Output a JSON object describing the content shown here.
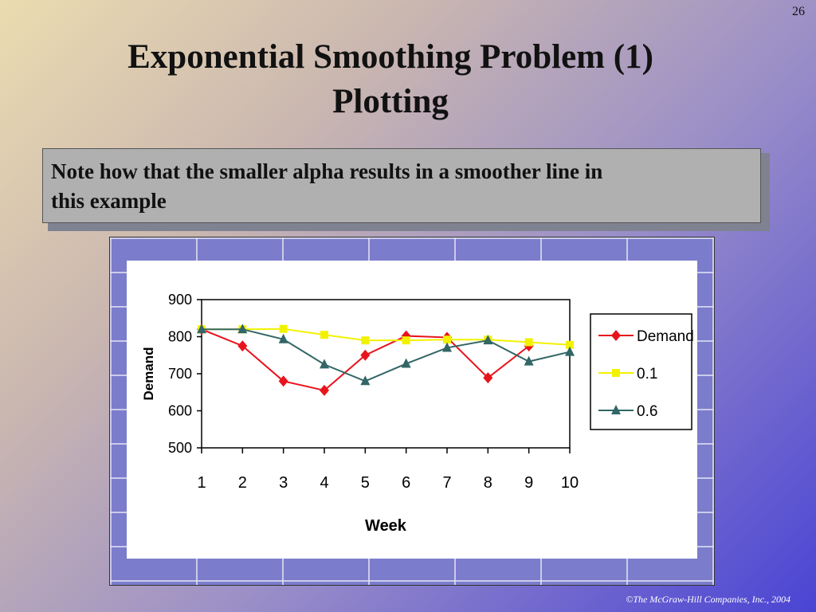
{
  "slide": {
    "number": "26",
    "title_line1": "Exponential Smoothing Problem (1)",
    "title_line2": "Plotting",
    "note_line1": "Note how that the smaller alpha results in a  smoother line in",
    "note_line2": "this example",
    "copyright": "©The McGraw-Hill Companies, Inc., 2004"
  },
  "chart_data": {
    "type": "line",
    "xlabel": "Week",
    "ylabel": "Demand",
    "x": [
      1,
      2,
      3,
      4,
      5,
      6,
      7,
      8,
      9,
      10
    ],
    "ylim": [
      500,
      900
    ],
    "yticks": [
      500,
      600,
      700,
      800,
      900
    ],
    "legend_position": "right",
    "grid": false,
    "series": [
      {
        "name": "Demand",
        "color": "#e8141c",
        "marker": "diamond",
        "values": [
          820,
          775,
          680,
          655,
          750,
          802,
          798,
          689,
          775,
          null
        ]
      },
      {
        "name": "0.1",
        "color": "#f2f200",
        "marker": "square",
        "values": [
          820,
          820,
          821,
          805,
          790,
          790,
          792,
          792,
          785,
          778
        ]
      },
      {
        "name": "0.6",
        "color": "#336666",
        "marker": "triangle",
        "values": [
          820,
          820,
          793,
          725,
          680,
          727,
          770,
          790,
          733,
          759
        ]
      }
    ]
  }
}
